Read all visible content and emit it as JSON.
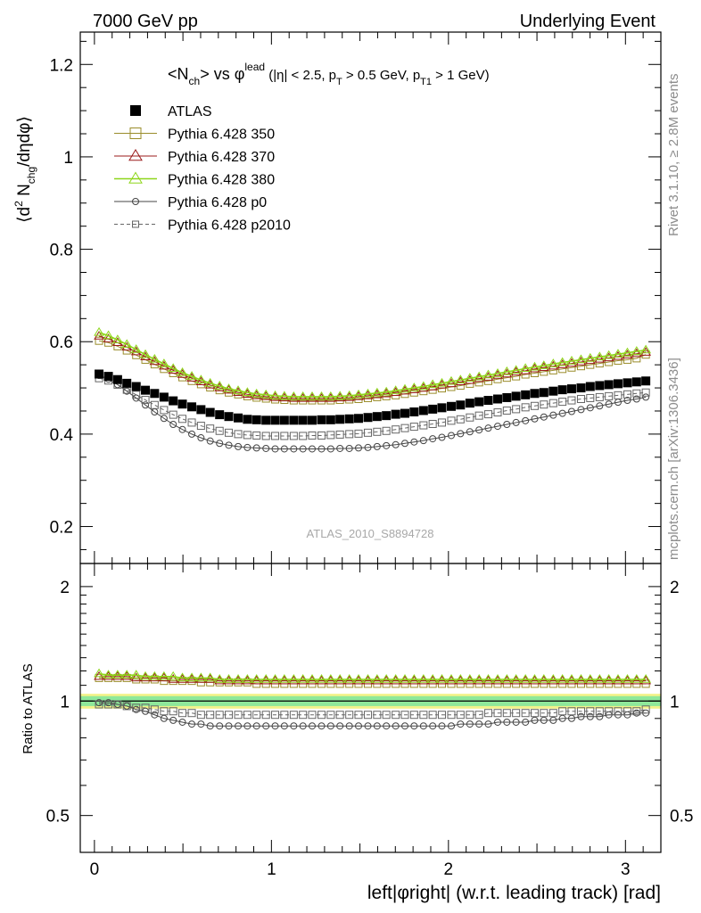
{
  "header": {
    "left": "7000 GeV pp",
    "right": "Underlying Event"
  },
  "side_labels": {
    "rivet": "Rivet 3.1.10, ≥ 2.8M events",
    "mcplots": "mcplots.cern.ch [arXiv:1306.3436]"
  },
  "watermark": "ATLAS_2010_S8894728",
  "plot_title": {
    "main": "<N",
    "main_sub": "ch",
    "vs": "> vs φ",
    "vs_sup": "lead",
    "cuts_1": " (|η| < 2.5, p",
    "cuts_1_sub": "T",
    "cuts_2": " > 0.5 GeV, p",
    "cuts_2_sub": "T1",
    "cuts_3": " > 1 GeV)"
  },
  "ylabel_main": {
    "a": "⟨d",
    "sup": "2",
    "b": " N",
    "sub": "chg",
    "c": "/dηdφ⟩"
  },
  "ylabel_ratio": "Ratio to ATLAS",
  "xlabel": "left|φright| (w.r.t. leading track) [rad]",
  "colors": {
    "atlas": "#000000",
    "p350": "#9a8c2a",
    "p370": "#9b1b1b",
    "p380": "#8ed61a",
    "p0": "#444444",
    "p2010": "#666666",
    "band_outer": "#f2f28a",
    "band_inner": "#8ee89a"
  },
  "chart_data": [
    {
      "type": "scatter",
      "name": "main",
      "xlim": [
        -0.08,
        3.2
      ],
      "ylim": [
        0.12,
        1.27
      ],
      "yticks": [
        0.2,
        0.4,
        0.6,
        0.8,
        1,
        1.2
      ],
      "ytick_labels": [
        "0.2",
        "0.4",
        "0.6",
        "0.8",
        "1",
        "1.2"
      ],
      "x": [
        0.026,
        0.079,
        0.131,
        0.183,
        0.236,
        0.288,
        0.34,
        0.393,
        0.445,
        0.497,
        0.55,
        0.602,
        0.654,
        0.707,
        0.759,
        0.812,
        0.864,
        0.916,
        0.969,
        1.021,
        1.073,
        1.126,
        1.178,
        1.23,
        1.283,
        1.335,
        1.387,
        1.44,
        1.492,
        1.545,
        1.597,
        1.649,
        1.702,
        1.754,
        1.806,
        1.859,
        1.911,
        1.963,
        2.016,
        2.068,
        2.121,
        2.173,
        2.225,
        2.278,
        2.33,
        2.382,
        2.435,
        2.487,
        2.539,
        2.592,
        2.644,
        2.696,
        2.749,
        2.801,
        2.854,
        2.906,
        2.958,
        3.011,
        3.063,
        3.115
      ],
      "series": [
        {
          "name": "ATLAS",
          "key": "atlas",
          "marker": "filled-square",
          "values": [
            0.53,
            0.525,
            0.518,
            0.51,
            0.503,
            0.495,
            0.488,
            0.48,
            0.472,
            0.465,
            0.459,
            0.453,
            0.447,
            0.442,
            0.438,
            0.435,
            0.432,
            0.431,
            0.43,
            0.43,
            0.43,
            0.43,
            0.43,
            0.43,
            0.431,
            0.431,
            0.432,
            0.433,
            0.434,
            0.436,
            0.438,
            0.44,
            0.443,
            0.445,
            0.448,
            0.451,
            0.454,
            0.457,
            0.46,
            0.463,
            0.467,
            0.47,
            0.473,
            0.476,
            0.479,
            0.482,
            0.485,
            0.488,
            0.49,
            0.493,
            0.496,
            0.498,
            0.5,
            0.503,
            0.505,
            0.507,
            0.509,
            0.511,
            0.513,
            0.515
          ]
        },
        {
          "name": "Pythia 6.428 350",
          "key": "p350",
          "marker": "open-square",
          "values": [
            0.602,
            0.598,
            0.59,
            0.581,
            0.571,
            0.561,
            0.551,
            0.541,
            0.532,
            0.523,
            0.515,
            0.508,
            0.501,
            0.495,
            0.49,
            0.486,
            0.482,
            0.479,
            0.477,
            0.475,
            0.474,
            0.473,
            0.473,
            0.473,
            0.473,
            0.473,
            0.474,
            0.475,
            0.476,
            0.478,
            0.48,
            0.482,
            0.484,
            0.487,
            0.49,
            0.493,
            0.496,
            0.499,
            0.502,
            0.505,
            0.509,
            0.512,
            0.515,
            0.519,
            0.522,
            0.525,
            0.529,
            0.532,
            0.535,
            0.538,
            0.541,
            0.544,
            0.547,
            0.55,
            0.553,
            0.556,
            0.559,
            0.561,
            0.564,
            0.572
          ]
        },
        {
          "name": "Pythia 6.428 370",
          "key": "p370",
          "marker": "open-triangle",
          "values": [
            0.612,
            0.606,
            0.598,
            0.588,
            0.578,
            0.567,
            0.557,
            0.547,
            0.538,
            0.529,
            0.521,
            0.513,
            0.506,
            0.5,
            0.495,
            0.49,
            0.486,
            0.483,
            0.481,
            0.479,
            0.478,
            0.477,
            0.477,
            0.477,
            0.477,
            0.477,
            0.478,
            0.479,
            0.481,
            0.483,
            0.485,
            0.487,
            0.49,
            0.493,
            0.496,
            0.499,
            0.502,
            0.506,
            0.509,
            0.513,
            0.516,
            0.52,
            0.523,
            0.527,
            0.53,
            0.534,
            0.537,
            0.541,
            0.544,
            0.547,
            0.55,
            0.553,
            0.556,
            0.559,
            0.562,
            0.565,
            0.568,
            0.571,
            0.574,
            0.577
          ]
        },
        {
          "name": "Pythia 6.428 380",
          "key": "p380",
          "marker": "open-triangle",
          "values": [
            0.62,
            0.613,
            0.604,
            0.594,
            0.583,
            0.572,
            0.562,
            0.552,
            0.542,
            0.533,
            0.525,
            0.517,
            0.51,
            0.504,
            0.498,
            0.494,
            0.49,
            0.487,
            0.485,
            0.483,
            0.482,
            0.481,
            0.481,
            0.481,
            0.481,
            0.481,
            0.482,
            0.483,
            0.485,
            0.487,
            0.489,
            0.491,
            0.494,
            0.497,
            0.5,
            0.503,
            0.507,
            0.51,
            0.514,
            0.517,
            0.521,
            0.524,
            0.528,
            0.531,
            0.535,
            0.538,
            0.542,
            0.545,
            0.548,
            0.552,
            0.555,
            0.558,
            0.561,
            0.564,
            0.567,
            0.57,
            0.573,
            0.576,
            0.579,
            0.582
          ]
        },
        {
          "name": "Pythia 6.428 p0",
          "key": "p0",
          "marker": "open-circle",
          "values": [
            0.527,
            0.519,
            0.507,
            0.493,
            0.478,
            0.463,
            0.448,
            0.434,
            0.421,
            0.41,
            0.4,
            0.392,
            0.385,
            0.38,
            0.376,
            0.373,
            0.371,
            0.37,
            0.369,
            0.368,
            0.368,
            0.368,
            0.368,
            0.368,
            0.368,
            0.368,
            0.369,
            0.369,
            0.37,
            0.371,
            0.373,
            0.375,
            0.377,
            0.38,
            0.383,
            0.386,
            0.39,
            0.393,
            0.397,
            0.401,
            0.405,
            0.409,
            0.413,
            0.417,
            0.421,
            0.425,
            0.429,
            0.433,
            0.437,
            0.441,
            0.445,
            0.449,
            0.453,
            0.457,
            0.461,
            0.465,
            0.469,
            0.473,
            0.476,
            0.48
          ]
        },
        {
          "name": "Pythia 6.428 p2010",
          "key": "p2010",
          "marker": "open-square",
          "values": [
            0.521,
            0.516,
            0.507,
            0.496,
            0.485,
            0.474,
            0.463,
            0.452,
            0.442,
            0.433,
            0.425,
            0.418,
            0.412,
            0.407,
            0.403,
            0.4,
            0.398,
            0.397,
            0.396,
            0.396,
            0.396,
            0.396,
            0.396,
            0.397,
            0.397,
            0.398,
            0.399,
            0.4,
            0.401,
            0.403,
            0.405,
            0.407,
            0.41,
            0.413,
            0.416,
            0.419,
            0.422,
            0.425,
            0.429,
            0.432,
            0.436,
            0.44,
            0.443,
            0.447,
            0.451,
            0.454,
            0.458,
            0.461,
            0.464,
            0.467,
            0.47,
            0.473,
            0.476,
            0.478,
            0.48,
            0.482,
            0.484,
            0.486,
            0.488,
            0.49
          ]
        }
      ]
    },
    {
      "type": "scatter",
      "name": "ratio",
      "xlim": [
        -0.08,
        3.2
      ],
      "ylim": [
        0.4,
        2.3
      ],
      "log_y": true,
      "yticks": [
        0.5,
        1,
        2
      ],
      "ytick_labels": [
        "0.5",
        "1",
        "2"
      ],
      "xticks": [
        0,
        1,
        2,
        3
      ],
      "xtick_labels": [
        "0",
        "1",
        "2",
        "3"
      ],
      "reference_band": {
        "inner": [
          0.97,
          1.03
        ],
        "outer": [
          0.955,
          1.045
        ]
      },
      "series": [
        {
          "name": "Pythia 6.428 350",
          "key": "p350",
          "marker": "open-square",
          "values": [
            1.15,
            1.15,
            1.15,
            1.15,
            1.14,
            1.14,
            1.14,
            1.13,
            1.13,
            1.13,
            1.13,
            1.12,
            1.12,
            1.12,
            1.12,
            1.12,
            1.12,
            1.11,
            1.11,
            1.11,
            1.11,
            1.11,
            1.11,
            1.11,
            1.11,
            1.11,
            1.11,
            1.11,
            1.11,
            1.11,
            1.11,
            1.11,
            1.11,
            1.11,
            1.11,
            1.11,
            1.11,
            1.11,
            1.11,
            1.11,
            1.11,
            1.11,
            1.11,
            1.11,
            1.11,
            1.11,
            1.11,
            1.11,
            1.11,
            1.11,
            1.11,
            1.11,
            1.11,
            1.11,
            1.11,
            1.11,
            1.11,
            1.11,
            1.11,
            1.11
          ]
        },
        {
          "name": "Pythia 6.428 370",
          "key": "p370",
          "marker": "open-triangle",
          "values": [
            1.16,
            1.16,
            1.16,
            1.16,
            1.15,
            1.15,
            1.15,
            1.15,
            1.14,
            1.14,
            1.14,
            1.14,
            1.14,
            1.13,
            1.13,
            1.13,
            1.13,
            1.13,
            1.13,
            1.13,
            1.13,
            1.13,
            1.13,
            1.13,
            1.13,
            1.13,
            1.13,
            1.13,
            1.13,
            1.13,
            1.13,
            1.13,
            1.13,
            1.13,
            1.13,
            1.13,
            1.13,
            1.13,
            1.13,
            1.13,
            1.13,
            1.13,
            1.13,
            1.13,
            1.13,
            1.13,
            1.13,
            1.13,
            1.13,
            1.13,
            1.13,
            1.13,
            1.13,
            1.13,
            1.13,
            1.13,
            1.13,
            1.13,
            1.13,
            1.13
          ]
        },
        {
          "name": "Pythia 6.428 380",
          "key": "p380",
          "marker": "open-triangle",
          "values": [
            1.18,
            1.17,
            1.17,
            1.17,
            1.17,
            1.16,
            1.16,
            1.16,
            1.16,
            1.15,
            1.15,
            1.15,
            1.15,
            1.14,
            1.14,
            1.14,
            1.14,
            1.14,
            1.14,
            1.14,
            1.14,
            1.14,
            1.14,
            1.14,
            1.14,
            1.14,
            1.14,
            1.14,
            1.14,
            1.14,
            1.14,
            1.14,
            1.14,
            1.14,
            1.14,
            1.14,
            1.14,
            1.14,
            1.14,
            1.14,
            1.14,
            1.14,
            1.14,
            1.14,
            1.14,
            1.14,
            1.14,
            1.14,
            1.14,
            1.14,
            1.14,
            1.14,
            1.14,
            1.14,
            1.14,
            1.14,
            1.14,
            1.14,
            1.14,
            1.14
          ]
        },
        {
          "name": "Pythia 6.428 p0",
          "key": "p0",
          "marker": "open-circle",
          "values": [
            0.99,
            0.99,
            0.98,
            0.97,
            0.95,
            0.94,
            0.92,
            0.9,
            0.89,
            0.88,
            0.87,
            0.87,
            0.86,
            0.86,
            0.86,
            0.86,
            0.86,
            0.86,
            0.86,
            0.86,
            0.86,
            0.86,
            0.86,
            0.86,
            0.86,
            0.86,
            0.86,
            0.86,
            0.86,
            0.86,
            0.86,
            0.86,
            0.86,
            0.86,
            0.86,
            0.86,
            0.86,
            0.86,
            0.86,
            0.87,
            0.87,
            0.87,
            0.87,
            0.88,
            0.88,
            0.88,
            0.88,
            0.89,
            0.89,
            0.89,
            0.9,
            0.9,
            0.91,
            0.91,
            0.91,
            0.92,
            0.92,
            0.92,
            0.93,
            0.93
          ]
        },
        {
          "name": "Pythia 6.428 p2010",
          "key": "p2010",
          "marker": "open-square",
          "values": [
            0.98,
            0.98,
            0.98,
            0.97,
            0.96,
            0.96,
            0.95,
            0.94,
            0.94,
            0.93,
            0.93,
            0.92,
            0.92,
            0.92,
            0.92,
            0.92,
            0.92,
            0.92,
            0.92,
            0.92,
            0.92,
            0.92,
            0.92,
            0.92,
            0.92,
            0.92,
            0.92,
            0.92,
            0.92,
            0.92,
            0.92,
            0.92,
            0.92,
            0.92,
            0.92,
            0.92,
            0.92,
            0.92,
            0.92,
            0.92,
            0.92,
            0.92,
            0.93,
            0.93,
            0.93,
            0.93,
            0.93,
            0.93,
            0.93,
            0.93,
            0.94,
            0.94,
            0.94,
            0.94,
            0.94,
            0.94,
            0.94,
            0.94,
            0.94,
            0.95
          ]
        }
      ]
    }
  ]
}
